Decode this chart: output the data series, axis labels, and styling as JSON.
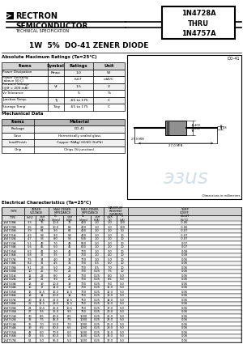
{
  "elec_rows": [
    [
      "1N4728A",
      "3.3",
      "76",
      "10.0",
      "76",
      "400",
      "1.0",
      "1.0",
      "100",
      "-0.06"
    ],
    [
      "1N4729A",
      "3.6",
      "69",
      "10.0",
      "69",
      "400",
      "1.0",
      "1.0",
      "100",
      "-0.06"
    ],
    [
      "1N4730A",
      "3.9",
      "64",
      "9.0",
      "64",
      "400",
      "1.0",
      "1.0",
      "50",
      "-0.07"
    ],
    [
      "1N4731A",
      "4.3",
      "58",
      "9.0",
      "58",
      "400",
      "1.0",
      "1.0",
      "10",
      "-0.07"
    ],
    [
      "1N4732A",
      "4.7",
      "53",
      "8.0",
      "53",
      "500",
      "1.0",
      "1.0",
      "10",
      "-0.07"
    ],
    [
      "1N4733A",
      "5.1",
      "49",
      "7.0",
      "49",
      "550",
      "1.0",
      "2.0",
      "10",
      "0.07"
    ],
    [
      "1N4734A",
      "5.6",
      "45",
      "5.0",
      "45",
      "600",
      "1.0",
      "2.0",
      "10",
      "0.07"
    ],
    [
      "1N4735A",
      "6.2",
      "41",
      "2.0",
      "41",
      "700",
      "1.0",
      "3.0",
      "10",
      "0.08"
    ],
    [
      "1N4736A",
      "6.8",
      "37",
      "3.5",
      "37",
      "700",
      "1.0",
      "4.0",
      "10",
      "0.08"
    ],
    [
      "1N4737A",
      "7.5",
      "34",
      "4.0",
      "34",
      "700",
      "1.0",
      "5.0",
      "10",
      "0.06"
    ],
    [
      "1N4738A",
      "8.2",
      "31",
      "4.5",
      "31",
      "700",
      "0.5",
      "6.0",
      "10",
      "0.06"
    ],
    [
      "1N4739A",
      "9.1",
      "28",
      "5.0",
      "28",
      "700",
      "0.5",
      "7.0",
      "10",
      "0.06"
    ],
    [
      "1N4740A",
      "10",
      "25",
      "7.0",
      "25",
      "700",
      "0.25",
      "7.5",
      "10",
      "0.06"
    ],
    [
      "1N4741A",
      "11",
      "23",
      "8.0",
      "23",
      "700",
      "0.25",
      "8.0",
      "5.0",
      "0.06"
    ],
    [
      "1N4742A",
      "12",
      "21",
      "9.0",
      "21",
      "700",
      "0.25",
      "8.5",
      "5.0",
      "0.06"
    ],
    [
      "1N4743A",
      "13",
      "19",
      "10.0",
      "19",
      "700",
      "0.25",
      "9.0",
      "5.0",
      "0.06"
    ],
    [
      "1N4744A",
      "15",
      "17",
      "14.0",
      "17",
      "700",
      "0.25",
      "11.0",
      "5.0",
      "0.06"
    ],
    [
      "1N4745A",
      "16",
      "15.5",
      "16.0",
      "15.5",
      "700",
      "0.25",
      "12.0",
      "5.0",
      "0.06"
    ],
    [
      "1N4746A",
      "18",
      "14",
      "20.0",
      "14",
      "750",
      "0.25",
      "13.0",
      "5.0",
      "0.06"
    ],
    [
      "1N4747A",
      "20",
      "12.5",
      "22.0",
      "12.5",
      "750",
      "0.25",
      "14.0",
      "5.0",
      "0.06"
    ],
    [
      "1N4748A",
      "22",
      "11.5",
      "23.0",
      "11.5",
      "750",
      "0.25",
      "16.0",
      "5.0",
      "0.06"
    ],
    [
      "1N4749A",
      "24",
      "10.5",
      "25.0",
      "10.5",
      "750",
      "0.25",
      "17.0",
      "5.0",
      "0.06"
    ],
    [
      "1N4750A",
      "27",
      "9.5",
      "35.0",
      "9.5",
      "750",
      "0.25",
      "20.0",
      "5.0",
      "0.06"
    ],
    [
      "1N4751A",
      "30",
      "8.5",
      "40.0",
      "8.5",
      "1000",
      "0.25",
      "22.0",
      "5.0",
      "0.06"
    ],
    [
      "1N4752A",
      "33",
      "7.5",
      "45.0",
      "7.5",
      "1000",
      "0.25",
      "24.0",
      "5.0",
      "0.06"
    ],
    [
      "1N4753A",
      "36",
      "7.0",
      "50.0",
      "7.0",
      "1000",
      "0.25",
      "26.0",
      "5.0",
      "0.06"
    ],
    [
      "1N4754A",
      "39",
      "6.5",
      "60.0",
      "6.5",
      "1000",
      "0.25",
      "28.0",
      "5.0",
      "0.06"
    ],
    [
      "1N4755A",
      "43",
      "6.0",
      "70.0",
      "6.0",
      "1500",
      "0.25",
      "31.0",
      "5.0",
      "0.06"
    ],
    [
      "1N4756A",
      "47",
      "5.5",
      "80.0",
      "5.5",
      "1500",
      "0.25",
      "34.0",
      "5.0",
      "0.06"
    ],
    [
      "1N4757A",
      "51",
      "5.0",
      "95.0",
      "5.0",
      "1500",
      "0.25",
      "37.0",
      "5.0",
      "0.06"
    ]
  ],
  "abs_max_rows": [
    [
      "Power Dissipation",
      "Pmax",
      "1.0",
      "W"
    ],
    [
      "Power Derating\n(above 50 C)",
      "",
      "6.67",
      "mW/C"
    ],
    [
      "Forward Voltage\n(@If = 200 mA)",
      "Vf",
      "1.5",
      "V"
    ],
    [
      "Vz Tolerance",
      "",
      "5",
      "%"
    ],
    [
      "Junction Temp.",
      "Tj",
      "-65 to 175",
      "C"
    ],
    [
      "Storage Temp.",
      "Tstg",
      "-65 to 175",
      "C"
    ]
  ],
  "mech_rows": [
    [
      "Package",
      "DO-41"
    ],
    [
      "Case",
      "Hermetically sealed glass"
    ],
    [
      "Lead/Finish",
      "Copper (NiAg) 60/40 (SnPb)"
    ],
    [
      "Chip",
      "Chips (Si junction)"
    ]
  ],
  "bg_color": "#ffffff"
}
